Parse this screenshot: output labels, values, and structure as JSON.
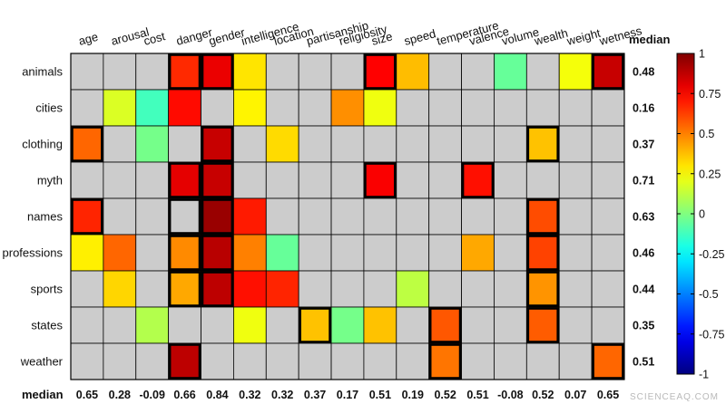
{
  "chart_data": {
    "type": "heatmap",
    "columns": [
      "age",
      "arousal",
      "cost",
      "danger",
      "gender",
      "intelligence",
      "location",
      "partisanship",
      "religiosity",
      "size",
      "speed",
      "temperature",
      "valence",
      "volume",
      "wealth",
      "weight",
      "wetness"
    ],
    "rows": [
      "animals",
      "cities",
      "clothing",
      "myth",
      "names",
      "professions",
      "sports",
      "states",
      "weather"
    ],
    "median_label": "median",
    "values": [
      [
        null,
        null,
        null,
        0.67,
        0.79,
        0.3,
        null,
        null,
        null,
        0.75,
        0.38,
        null,
        null,
        -0.05,
        null,
        0.23,
        0.86
      ],
      [
        null,
        0.18,
        -0.12,
        0.73,
        null,
        0.27,
        null,
        null,
        0.47,
        0.22,
        null,
        null,
        null,
        null,
        null,
        null,
        null
      ],
      [
        0.55,
        null,
        -0.02,
        null,
        0.86,
        null,
        0.32,
        null,
        null,
        null,
        null,
        null,
        null,
        null,
        0.37,
        null,
        null
      ],
      [
        null,
        null,
        null,
        0.8,
        0.86,
        null,
        null,
        null,
        null,
        0.76,
        null,
        null,
        0.72,
        null,
        null,
        null,
        null
      ],
      [
        0.68,
        null,
        null,
        null,
        0.95,
        0.7,
        null,
        null,
        null,
        null,
        null,
        null,
        null,
        null,
        0.6,
        null,
        null
      ],
      [
        0.28,
        0.55,
        null,
        0.48,
        0.89,
        0.5,
        -0.05,
        null,
        null,
        null,
        null,
        null,
        0.42,
        null,
        0.62,
        null,
        null
      ],
      [
        null,
        0.33,
        null,
        0.42,
        0.88,
        0.72,
        0.68,
        null,
        null,
        null,
        0.12,
        null,
        null,
        null,
        0.46,
        null,
        null
      ],
      [
        null,
        null,
        0.1,
        null,
        null,
        0.22,
        null,
        0.37,
        -0.02,
        0.37,
        null,
        0.58,
        null,
        null,
        0.57,
        null,
        null
      ],
      [
        null,
        null,
        null,
        0.88,
        null,
        null,
        null,
        null,
        null,
        null,
        null,
        0.52,
        null,
        null,
        null,
        null,
        0.55
      ]
    ],
    "highlighted": [
      [
        0,
        3
      ],
      [
        0,
        4
      ],
      [
        0,
        9
      ],
      [
        0,
        16
      ],
      [
        2,
        0
      ],
      [
        2,
        4
      ],
      [
        2,
        14
      ],
      [
        3,
        3
      ],
      [
        3,
        4
      ],
      [
        3,
        9
      ],
      [
        3,
        12
      ],
      [
        4,
        0
      ],
      [
        4,
        3
      ],
      [
        4,
        4
      ],
      [
        4,
        14
      ],
      [
        5,
        3
      ],
      [
        5,
        4
      ],
      [
        5,
        14
      ],
      [
        6,
        3
      ],
      [
        6,
        4
      ],
      [
        6,
        14
      ],
      [
        7,
        7
      ],
      [
        7,
        11
      ],
      [
        7,
        14
      ],
      [
        8,
        3
      ],
      [
        8,
        11
      ],
      [
        8,
        16
      ]
    ],
    "row_medians": [
      "0.48",
      "0.16",
      "0.37",
      "0.71",
      "0.63",
      "0.46",
      "0.44",
      "0.35",
      "0.51"
    ],
    "col_medians": [
      "0.65",
      "0.28",
      "-0.09",
      "0.66",
      "0.84",
      "0.32",
      "0.32",
      "0.37",
      "0.17",
      "0.51",
      "0.19",
      "0.52",
      "0.51",
      "-0.08",
      "0.52",
      "0.07",
      "0.65"
    ],
    "colorbar": {
      "min": -1,
      "max": 1,
      "colormap": "jet",
      "ticks": [
        "1",
        "0.75",
        "0.5",
        "0.25",
        "0",
        "-0.25",
        "-0.5",
        "-0.75",
        "-1"
      ]
    },
    "missing_color": "#cccccc"
  },
  "watermark": "SCIENCEAQ.COM"
}
